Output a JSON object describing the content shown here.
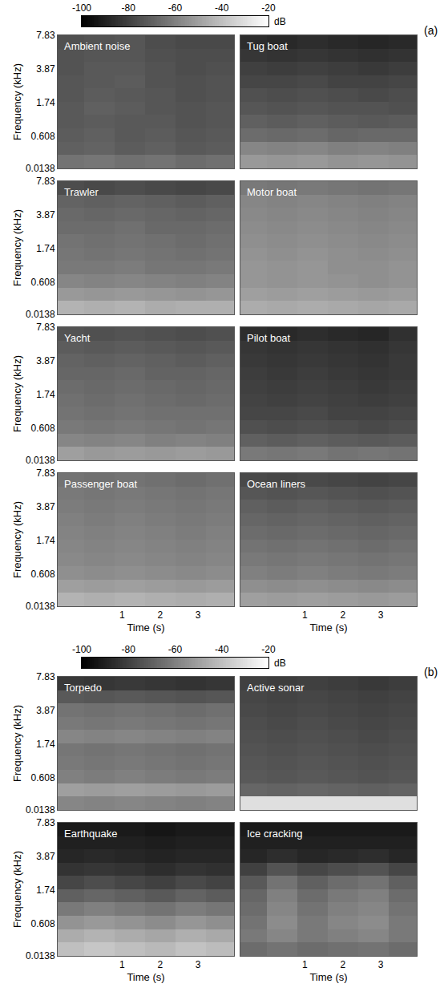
{
  "chart_data": [
    {
      "type": "heatmap",
      "panel_label": "(a)",
      "xlabel": "Time (s)",
      "ylabel": "Frequency (kHz)",
      "xlim": [
        -0.7,
        3.95
      ],
      "xticks": [
        1,
        2,
        3
      ],
      "ylim": [
        0.0138,
        7.83
      ],
      "yticks": [
        0.0138,
        0.608,
        1.74,
        3.87,
        7.83
      ],
      "time_bins": [
        -0.7,
        0,
        0.8,
        1.6,
        2.4,
        3.2,
        3.95
      ],
      "freq_bins": [
        0.0138,
        0.214,
        0.472,
        0.802,
        1.23,
        1.77,
        2.46,
        3.35,
        4.49,
        5.95,
        7.83
      ],
      "colorbar": {
        "label": "dB",
        "range": [
          -100,
          -20
        ],
        "ticks": [
          -100,
          -80,
          -60,
          -40,
          -20
        ]
      },
      "panels": [
        {
          "title": "Ambient noise",
          "z": [
            [
              -64,
              -63,
              -65,
              -64,
              -66,
              -65
            ],
            [
              -70,
              -69,
              -71,
              -70,
              -72,
              -71
            ],
            [
              -71,
              -70,
              -72,
              -71,
              -73,
              -72
            ],
            [
              -72,
              -71,
              -72,
              -72,
              -74,
              -73
            ],
            [
              -72,
              -70,
              -71,
              -73,
              -74,
              -73
            ],
            [
              -73,
              -71,
              -72,
              -73,
              -75,
              -74
            ],
            [
              -73,
              -72,
              -71,
              -74,
              -75,
              -74
            ],
            [
              -74,
              -72,
              -72,
              -74,
              -76,
              -75
            ],
            [
              -74,
              -73,
              -73,
              -75,
              -76,
              -76
            ],
            [
              -75,
              -74,
              -73,
              -76,
              -77,
              -77
            ]
          ]
        },
        {
          "title": "Tug boat",
          "z": [
            [
              -52,
              -53,
              -52,
              -54,
              -53,
              -54
            ],
            [
              -58,
              -59,
              -58,
              -60,
              -59,
              -60
            ],
            [
              -66,
              -67,
              -66,
              -68,
              -67,
              -67
            ],
            [
              -70,
              -71,
              -70,
              -71,
              -72,
              -71
            ],
            [
              -73,
              -74,
              -73,
              -74,
              -74,
              -75
            ],
            [
              -75,
              -76,
              -75,
              -76,
              -77,
              -76
            ],
            [
              -78,
              -78,
              -77,
              -79,
              -79,
              -78
            ],
            [
              -80,
              -81,
              -80,
              -81,
              -82,
              -81
            ],
            [
              -83,
              -84,
              -83,
              -84,
              -85,
              -84
            ],
            [
              -86,
              -87,
              -86,
              -87,
              -88,
              -87
            ]
          ]
        },
        {
          "title": "Trawler",
          "z": [
            [
              -44,
              -45,
              -44,
              -46,
              -45,
              -45
            ],
            [
              -52,
              -53,
              -52,
              -53,
              -54,
              -53
            ],
            [
              -58,
              -59,
              -58,
              -59,
              -60,
              -59
            ],
            [
              -62,
              -62,
              -61,
              -63,
              -63,
              -62
            ],
            [
              -63,
              -64,
              -63,
              -64,
              -65,
              -64
            ],
            [
              -64,
              -65,
              -64,
              -65,
              -66,
              -65
            ],
            [
              -66,
              -66,
              -65,
              -67,
              -67,
              -66
            ],
            [
              -67,
              -68,
              -67,
              -68,
              -69,
              -68
            ],
            [
              -69,
              -70,
              -69,
              -70,
              -71,
              -70
            ],
            [
              -76,
              -77,
              -76,
              -77,
              -78,
              -77
            ]
          ]
        },
        {
          "title": "Motor boat",
          "z": [
            [
              -46,
              -47,
              -46,
              -47,
              -48,
              -47
            ],
            [
              -50,
              -51,
              -50,
              -51,
              -52,
              -51
            ],
            [
              -53,
              -54,
              -53,
              -54,
              -55,
              -54
            ],
            [
              -53,
              -54,
              -53,
              -55,
              -55,
              -54
            ],
            [
              -54,
              -55,
              -54,
              -55,
              -56,
              -55
            ],
            [
              -55,
              -56,
              -55,
              -56,
              -57,
              -56
            ],
            [
              -56,
              -57,
              -56,
              -57,
              -58,
              -57
            ],
            [
              -57,
              -58,
              -57,
              -58,
              -59,
              -58
            ],
            [
              -58,
              -59,
              -58,
              -59,
              -60,
              -59
            ],
            [
              -62,
              -63,
              -62,
              -63,
              -64,
              -63
            ]
          ]
        },
        {
          "title": "Yacht",
          "z": [
            [
              -50,
              -52,
              -51,
              -52,
              -51,
              -52
            ],
            [
              -58,
              -59,
              -58,
              -60,
              -59,
              -60
            ],
            [
              -62,
              -63,
              -62,
              -63,
              -64,
              -63
            ],
            [
              -64,
              -65,
              -64,
              -65,
              -65,
              -65
            ],
            [
              -65,
              -66,
              -65,
              -66,
              -67,
              -66
            ],
            [
              -66,
              -67,
              -66,
              -67,
              -68,
              -67
            ],
            [
              -68,
              -68,
              -67,
              -69,
              -69,
              -68
            ],
            [
              -69,
              -70,
              -69,
              -70,
              -71,
              -70
            ],
            [
              -71,
              -72,
              -71,
              -72,
              -73,
              -72
            ],
            [
              -74,
              -75,
              -74,
              -75,
              -76,
              -75
            ]
          ]
        },
        {
          "title": "Pilot boat",
          "z": [
            [
              -62,
              -63,
              -62,
              -64,
              -63,
              -64
            ],
            [
              -70,
              -71,
              -70,
              -71,
              -72,
              -71
            ],
            [
              -75,
              -76,
              -75,
              -76,
              -77,
              -76
            ],
            [
              -78,
              -78,
              -77,
              -79,
              -79,
              -78
            ],
            [
              -79,
              -80,
              -79,
              -80,
              -81,
              -80
            ],
            [
              -80,
              -81,
              -80,
              -81,
              -82,
              -81
            ],
            [
              -81,
              -82,
              -81,
              -82,
              -83,
              -82
            ],
            [
              -82,
              -83,
              -82,
              -83,
              -84,
              -82
            ],
            [
              -83,
              -84,
              -83,
              -84,
              -85,
              -83
            ],
            [
              -86,
              -87,
              -86,
              -87,
              -88,
              -85
            ]
          ]
        },
        {
          "title": "Passenger boat",
          "z": [
            [
              -44,
              -45,
              -44,
              -45,
              -46,
              -45
            ],
            [
              -50,
              -51,
              -50,
              -51,
              -52,
              -51
            ],
            [
              -55,
              -56,
              -55,
              -56,
              -57,
              -56
            ],
            [
              -57,
              -58,
              -57,
              -58,
              -59,
              -58
            ],
            [
              -58,
              -59,
              -58,
              -59,
              -60,
              -59
            ],
            [
              -59,
              -60,
              -59,
              -60,
              -61,
              -60
            ],
            [
              -60,
              -61,
              -60,
              -61,
              -62,
              -61
            ],
            [
              -61,
              -62,
              -61,
              -62,
              -63,
              -62
            ],
            [
              -62,
              -63,
              -62,
              -63,
              -64,
              -63
            ],
            [
              -64,
              -65,
              -64,
              -65,
              -66,
              -65
            ]
          ]
        },
        {
          "title": "Ocean liners",
          "z": [
            [
              -50,
              -51,
              -50,
              -51,
              -52,
              -51
            ],
            [
              -55,
              -56,
              -55,
              -56,
              -57,
              -56
            ],
            [
              -60,
              -61,
              -60,
              -61,
              -62,
              -61
            ],
            [
              -62,
              -63,
              -62,
              -63,
              -64,
              -63
            ],
            [
              -64,
              -65,
              -64,
              -65,
              -66,
              -65
            ],
            [
              -66,
              -67,
              -66,
              -67,
              -68,
              -67
            ],
            [
              -68,
              -69,
              -68,
              -69,
              -70,
              -69
            ],
            [
              -70,
              -71,
              -70,
              -71,
              -72,
              -71
            ],
            [
              -73,
              -74,
              -73,
              -74,
              -75,
              -74
            ],
            [
              -77,
              -78,
              -77,
              -78,
              -79,
              -78
            ]
          ]
        }
      ]
    },
    {
      "type": "heatmap",
      "panel_label": "(b)",
      "xlabel": "Time (s)",
      "ylabel": "Frequency (kHz)",
      "xlim": [
        -0.7,
        3.95
      ],
      "xticks": [
        1,
        2,
        3
      ],
      "ylim": [
        0.0138,
        7.83
      ],
      "yticks": [
        0.0138,
        0.608,
        1.74,
        3.87,
        7.83
      ],
      "time_bins": [
        -0.7,
        0,
        0.8,
        1.6,
        2.4,
        3.2,
        3.95
      ],
      "freq_bins": [
        0.0138,
        0.214,
        0.472,
        0.802,
        1.23,
        1.77,
        2.46,
        3.35,
        4.49,
        5.95,
        7.83
      ],
      "colorbar": {
        "label": "dB",
        "range": [
          -100,
          -20
        ],
        "ticks": [
          -100,
          -80,
          -60,
          -40,
          -20
        ]
      },
      "panels": [
        {
          "title": "Torpedo",
          "z": [
            [
              -58,
              -59,
              -58,
              -59,
              -60,
              -59
            ],
            [
              -50,
              -51,
              -50,
              -51,
              -52,
              -51
            ],
            [
              -60,
              -61,
              -60,
              -61,
              -62,
              -61
            ],
            [
              -62,
              -63,
              -62,
              -63,
              -64,
              -63
            ],
            [
              -63,
              -64,
              -63,
              -64,
              -65,
              -64
            ],
            [
              -58,
              -59,
              -58,
              -59,
              -60,
              -59
            ],
            [
              -62,
              -63,
              -62,
              -63,
              -64,
              -63
            ],
            [
              -64,
              -65,
              -64,
              -65,
              -66,
              -65
            ],
            [
              -72,
              -73,
              -72,
              -73,
              -74,
              -73
            ],
            [
              -82,
              -83,
              -82,
              -83,
              -84,
              -83
            ]
          ]
        },
        {
          "title": "Active sonar",
          "z": [
            [
              -30,
              -30,
              -30,
              -30,
              -30,
              -30
            ],
            [
              -68,
              -69,
              -68,
              -69,
              -70,
              -69
            ],
            [
              -72,
              -73,
              -72,
              -73,
              -74,
              -73
            ],
            [
              -73,
              -74,
              -73,
              -74,
              -75,
              -74
            ],
            [
              -74,
              -75,
              -74,
              -75,
              -76,
              -75
            ],
            [
              -75,
              -76,
              -75,
              -76,
              -77,
              -76
            ],
            [
              -76,
              -77,
              -76,
              -77,
              -78,
              -77
            ],
            [
              -77,
              -78,
              -77,
              -78,
              -79,
              -78
            ],
            [
              -78,
              -79,
              -78,
              -79,
              -80,
              -79
            ],
            [
              -80,
              -81,
              -80,
              -81,
              -82,
              -81
            ]
          ]
        },
        {
          "title": "Earthquake",
          "z": [
            [
              -40,
              -38,
              -40,
              -42,
              -39,
              -41
            ],
            [
              -46,
              -44,
              -46,
              -48,
              -45,
              -47
            ],
            [
              -54,
              -52,
              -54,
              -56,
              -53,
              -55
            ],
            [
              -62,
              -60,
              -62,
              -64,
              -61,
              -63
            ],
            [
              -70,
              -68,
              -70,
              -72,
              -69,
              -71
            ],
            [
              -78,
              -76,
              -78,
              -80,
              -77,
              -79
            ],
            [
              -84,
              -83,
              -84,
              -86,
              -84,
              -85
            ],
            [
              -88,
              -87,
              -88,
              -89,
              -88,
              -88
            ],
            [
              -90,
              -90,
              -90,
              -91,
              -90,
              -90
            ],
            [
              -92,
              -92,
              -92,
              -93,
              -92,
              -92
            ]
          ]
        },
        {
          "title": "Ice cracking",
          "z": [
            [
              -66,
              -64,
              -66,
              -65,
              -64,
              -66
            ],
            [
              -62,
              -58,
              -62,
              -60,
              -58,
              -62
            ],
            [
              -64,
              -56,
              -62,
              -58,
              -56,
              -62
            ],
            [
              -66,
              -58,
              -64,
              -60,
              -58,
              -64
            ],
            [
              -68,
              -60,
              -66,
              -62,
              -60,
              -66
            ],
            [
              -72,
              -64,
              -70,
              -66,
              -64,
              -70
            ],
            [
              -80,
              -74,
              -78,
              -76,
              -74,
              -78
            ],
            [
              -88,
              -86,
              -88,
              -87,
              -86,
              -88
            ],
            [
              -90,
              -90,
              -90,
              -90,
              -90,
              -90
            ],
            [
              -92,
              -92,
              -92,
              -92,
              -92,
              -92
            ]
          ]
        }
      ]
    }
  ]
}
